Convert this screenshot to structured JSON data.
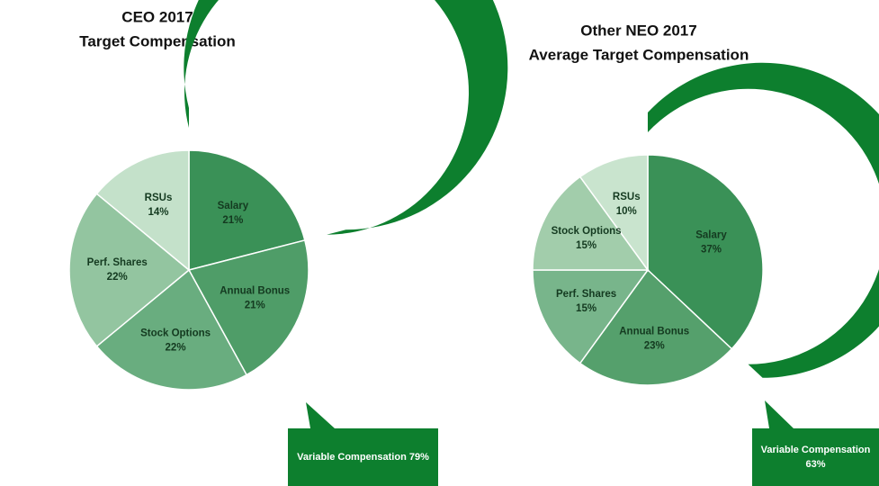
{
  "chart_data": [
    {
      "type": "pie",
      "title": "CEO 2017",
      "subtitle": "Target Compensation",
      "categories": [
        "Salary",
        "Annual Bonus",
        "Stock Options",
        "Perf. Shares",
        "RSUs"
      ],
      "values": [
        21,
        21,
        22,
        22,
        14
      ],
      "value_labels": [
        "21%",
        "21%",
        "22%",
        "22%",
        "14%"
      ],
      "colors": [
        "#3a9157",
        "#4f9d68",
        "#69ad7f",
        "#93c5a0",
        "#c4e1ca"
      ],
      "annotation": "Variable Compensation 79%",
      "annotation_color": "#0d7f2e"
    },
    {
      "type": "pie",
      "title": "Other NEO 2017",
      "subtitle": "Average Target Compensation",
      "categories": [
        "Salary",
        "Annual Bonus",
        "Perf. Shares",
        "Stock Options",
        "RSUs"
      ],
      "values": [
        37,
        23,
        15,
        15,
        10
      ],
      "value_labels": [
        "37%",
        "23%",
        "15%",
        "15%",
        "10%"
      ],
      "colors": [
        "#3a9157",
        "#55a06c",
        "#78b58b",
        "#a2cdab",
        "#c9e4ce"
      ],
      "annotation": "Variable Compensation 63%",
      "annotation_color": "#0d7f2e"
    }
  ]
}
